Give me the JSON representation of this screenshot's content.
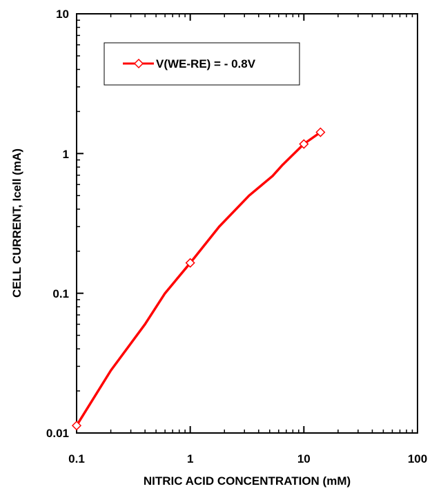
{
  "chart_data": {
    "type": "line",
    "x_scale": "log",
    "y_scale": "log",
    "xlim": [
      0.1,
      100
    ],
    "ylim": [
      0.01,
      10
    ],
    "x_ticks": [
      0.1,
      1,
      10,
      100
    ],
    "y_ticks": [
      0.01,
      0.1,
      1,
      10
    ],
    "x_tick_labels": [
      "0.1",
      "1",
      "10",
      "100"
    ],
    "y_tick_labels": [
      "0.01",
      "0.1",
      "1",
      "10"
    ],
    "xlabel": "NITRIC ACID CONCENTRATION (mM)",
    "ylabel": "CELL CURRENT, Icell (mA)",
    "grid": false,
    "legend_position": "top-left",
    "series": [
      {
        "name": "V(WE-RE) = - 0.8V",
        "color": "#ff0000",
        "marker": "open-diamond",
        "x": [
          0.1,
          1,
          10,
          14
        ],
        "y": [
          0.0113,
          0.165,
          1.17,
          1.42
        ],
        "curve_x": [
          0.1,
          0.2,
          0.4,
          0.6,
          1,
          1.8,
          3.3,
          5.3,
          6.5,
          10,
          14
        ],
        "curve_y": [
          0.0113,
          0.028,
          0.06,
          0.1,
          0.165,
          0.3,
          0.5,
          0.69,
          0.83,
          1.17,
          1.42
        ]
      }
    ]
  }
}
